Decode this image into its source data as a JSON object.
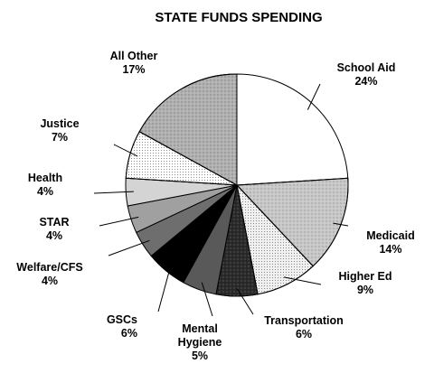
{
  "chart_data": {
    "type": "pie",
    "title": "STATE FUNDS SPENDING",
    "start_angle_deg": 0,
    "direction": "clockwise",
    "slices": [
      {
        "label": "School Aid",
        "pct_label": "24%",
        "value": 24,
        "fill": "#ffffff",
        "pattern": "solid"
      },
      {
        "label": "Medicaid",
        "pct_label": "14%",
        "value": 14,
        "fill": "#c8c8c8",
        "pattern": "speckle"
      },
      {
        "label": "Higher Ed",
        "pct_label": "9%",
        "value": 9,
        "fill": "#f0f0f0",
        "pattern": "dots"
      },
      {
        "label": "Transportation",
        "pct_label": "6%",
        "value": 6,
        "fill": "#2a2a2a",
        "pattern": "speckle"
      },
      {
        "label": "Mental Hygiene",
        "label_lines": [
          "Mental",
          "Hygiene"
        ],
        "pct_label": "5%",
        "value": 5,
        "fill": "#595959",
        "pattern": "solid"
      },
      {
        "label": "GSCs",
        "pct_label": "6%",
        "value": 6,
        "fill": "#000000",
        "pattern": "solid"
      },
      {
        "label": "Welfare/CFS",
        "pct_label": "4%",
        "value": 4,
        "fill": "#6e6e6e",
        "pattern": "solid"
      },
      {
        "label": "STAR",
        "pct_label": "4%",
        "value": 4,
        "fill": "#a0a0a0",
        "pattern": "solid"
      },
      {
        "label": "Health",
        "pct_label": "4%",
        "value": 4,
        "fill": "#d4d4d4",
        "pattern": "solid"
      },
      {
        "label": "Justice",
        "pct_label": "7%",
        "value": 7,
        "fill": "#ffffff",
        "pattern": "dots"
      },
      {
        "label": "All Other",
        "pct_label": "17%",
        "value": 17,
        "fill": "#b0b0b0",
        "pattern": "speckle"
      }
    ]
  }
}
